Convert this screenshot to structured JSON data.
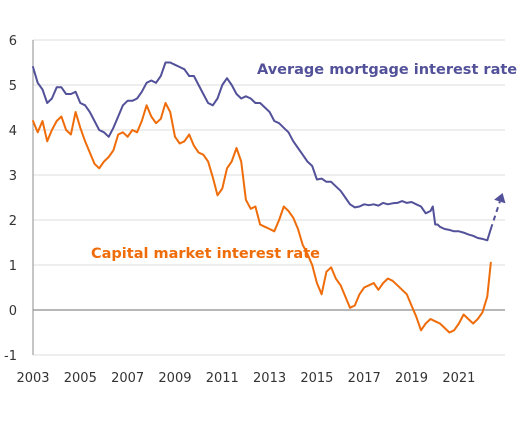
{
  "chart_data": {
    "type": "line",
    "title": "",
    "xlabel": "",
    "ylabel": "",
    "xlim": [
      2003.0,
      2022.95
    ],
    "ylim": [
      -1,
      6
    ],
    "y_ticks": [
      -1,
      0,
      1,
      2,
      3,
      4,
      5,
      6
    ],
    "x_ticks": [
      2003,
      2005,
      2007,
      2009,
      2011,
      2013,
      2015,
      2017,
      2019,
      2021
    ],
    "grid": "horizontal",
    "legend": "inline labels",
    "series": [
      {
        "name": "Average mortgage interest rate",
        "color": "#525199",
        "x": [
          2003.0,
          2003.2,
          2003.4,
          2003.6,
          2003.8,
          2004.0,
          2004.2,
          2004.4,
          2004.6,
          2004.8,
          2005.0,
          2005.2,
          2005.4,
          2005.6,
          2005.8,
          2006.0,
          2006.2,
          2006.4,
          2006.6,
          2006.8,
          2007.0,
          2007.2,
          2007.4,
          2007.6,
          2007.8,
          2008.0,
          2008.2,
          2008.4,
          2008.6,
          2008.8,
          2009.0,
          2009.2,
          2009.4,
          2009.6,
          2009.8,
          2010.0,
          2010.2,
          2010.4,
          2010.6,
          2010.8,
          2011.0,
          2011.2,
          2011.4,
          2011.6,
          2011.8,
          2012.0,
          2012.2,
          2012.4,
          2012.6,
          2012.8,
          2013.0,
          2013.2,
          2013.4,
          2013.6,
          2013.8,
          2014.0,
          2014.2,
          2014.4,
          2014.6,
          2014.8,
          2015.0,
          2015.2,
          2015.4,
          2015.6,
          2015.8,
          2016.0,
          2016.2,
          2016.4,
          2016.6,
          2016.8,
          2017.0,
          2017.2,
          2017.4,
          2017.6,
          2017.8,
          2018.0,
          2018.2,
          2018.4,
          2018.6,
          2018.8,
          2019.0,
          2019.2,
          2019.4,
          2019.6,
          2019.8,
          2019.9,
          2020.0,
          2020.1,
          2020.2,
          2020.4,
          2020.6,
          2020.8,
          2021.0,
          2021.2,
          2021.4,
          2021.6,
          2021.8,
          2022.0,
          2022.2,
          2022.35
        ],
        "values": [
          5.4,
          5.05,
          4.9,
          4.6,
          4.7,
          4.95,
          4.95,
          4.8,
          4.8,
          4.85,
          4.6,
          4.55,
          4.4,
          4.2,
          4.0,
          3.95,
          3.85,
          4.05,
          4.3,
          4.55,
          4.65,
          4.65,
          4.7,
          4.85,
          5.05,
          5.1,
          5.05,
          5.2,
          5.5,
          5.5,
          5.45,
          5.4,
          5.35,
          5.2,
          5.2,
          5.0,
          4.8,
          4.6,
          4.55,
          4.7,
          5.0,
          5.15,
          5.0,
          4.8,
          4.7,
          4.75,
          4.7,
          4.6,
          4.6,
          4.5,
          4.4,
          4.2,
          4.15,
          4.05,
          3.95,
          3.75,
          3.6,
          3.45,
          3.3,
          3.2,
          2.9,
          2.92,
          2.85,
          2.85,
          2.75,
          2.65,
          2.5,
          2.35,
          2.28,
          2.3,
          2.35,
          2.33,
          2.35,
          2.32,
          2.38,
          2.35,
          2.37,
          2.38,
          2.42,
          2.38,
          2.4,
          2.35,
          2.3,
          2.15,
          2.2,
          2.3,
          1.9,
          1.9,
          1.85,
          1.8,
          1.78,
          1.75,
          1.75,
          1.72,
          1.68,
          1.65,
          1.6,
          1.58,
          1.55,
          1.8
        ],
        "dashed_projection": {
          "x": [
            2022.35,
            2022.85
          ],
          "values": [
            1.8,
            2.6
          ]
        }
      },
      {
        "name": "Capital market interest rate",
        "color": "#ef6c0a",
        "x": [
          2003.0,
          2003.2,
          2003.4,
          2003.6,
          2003.8,
          2004.0,
          2004.2,
          2004.4,
          2004.6,
          2004.8,
          2005.0,
          2005.2,
          2005.4,
          2005.6,
          2005.8,
          2006.0,
          2006.2,
          2006.4,
          2006.6,
          2006.8,
          2007.0,
          2007.2,
          2007.4,
          2007.6,
          2007.8,
          2008.0,
          2008.2,
          2008.4,
          2008.6,
          2008.8,
          2009.0,
          2009.2,
          2009.4,
          2009.6,
          2009.8,
          2010.0,
          2010.2,
          2010.4,
          2010.6,
          2010.8,
          2011.0,
          2011.2,
          2011.4,
          2011.6,
          2011.8,
          2012.0,
          2012.2,
          2012.4,
          2012.6,
          2012.8,
          2013.0,
          2013.2,
          2013.4,
          2013.6,
          2013.8,
          2014.0,
          2014.2,
          2014.4,
          2014.6,
          2014.8,
          2015.0,
          2015.2,
          2015.4,
          2015.6,
          2015.8,
          2016.0,
          2016.2,
          2016.4,
          2016.6,
          2016.8,
          2017.0,
          2017.2,
          2017.4,
          2017.6,
          2017.8,
          2018.0,
          2018.2,
          2018.4,
          2018.6,
          2018.8,
          2019.0,
          2019.2,
          2019.4,
          2019.6,
          2019.8,
          2020.0,
          2020.2,
          2020.4,
          2020.6,
          2020.8,
          2021.0,
          2021.2,
          2021.4,
          2021.6,
          2021.8,
          2022.0,
          2022.2,
          2022.35
        ],
        "values": [
          4.2,
          3.95,
          4.2,
          3.75,
          4.0,
          4.2,
          4.3,
          4.0,
          3.9,
          4.4,
          4.05,
          3.75,
          3.5,
          3.25,
          3.15,
          3.3,
          3.4,
          3.55,
          3.9,
          3.95,
          3.85,
          4.0,
          3.95,
          4.2,
          4.55,
          4.3,
          4.15,
          4.25,
          4.6,
          4.4,
          3.85,
          3.7,
          3.75,
          3.9,
          3.65,
          3.5,
          3.45,
          3.3,
          2.95,
          2.55,
          2.7,
          3.15,
          3.3,
          3.6,
          3.3,
          2.45,
          2.25,
          2.3,
          1.9,
          1.85,
          1.8,
          1.75,
          2.0,
          2.3,
          2.2,
          2.05,
          1.8,
          1.45,
          1.25,
          1.0,
          0.6,
          0.35,
          0.85,
          0.95,
          0.7,
          0.55,
          0.3,
          0.05,
          0.1,
          0.35,
          0.5,
          0.55,
          0.6,
          0.45,
          0.6,
          0.7,
          0.65,
          0.55,
          0.45,
          0.35,
          0.1,
          -0.15,
          -0.45,
          -0.3,
          -0.2,
          -0.25,
          -0.3,
          -0.4,
          -0.5,
          -0.45,
          -0.3,
          -0.1,
          -0.2,
          -0.3,
          -0.2,
          -0.05,
          0.3,
          1.05
        ]
      }
    ]
  }
}
